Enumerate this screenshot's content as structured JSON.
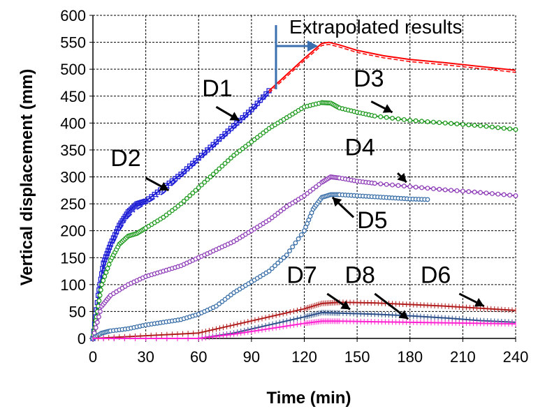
{
  "chart_data": {
    "type": "line",
    "title": "",
    "xlabel": "Time (min)",
    "ylabel": "Vertical displacement (mm)",
    "xlim": [
      0,
      240
    ],
    "ylim": [
      0,
      600
    ],
    "xticks": [
      0,
      30,
      60,
      90,
      120,
      150,
      180,
      210,
      240
    ],
    "yticks": [
      0,
      50,
      100,
      150,
      200,
      250,
      300,
      350,
      400,
      450,
      500,
      550,
      600
    ],
    "grid": true,
    "annotation": "Extrapolated results",
    "series": [
      {
        "name": "D1",
        "color": "#1f1fd6",
        "marker": "square-open",
        "x": [
          0,
          3,
          6,
          10,
          15,
          20,
          25,
          30,
          40,
          50,
          60,
          70,
          80,
          90,
          100
        ],
        "y": [
          0,
          80,
          140,
          175,
          210,
          235,
          250,
          255,
          280,
          305,
          335,
          365,
          395,
          425,
          460
        ]
      },
      {
        "name": "D2",
        "color": "#1f1fd6",
        "dash": true,
        "x": [
          0,
          3,
          6,
          10,
          15,
          20,
          25,
          30,
          40,
          50,
          60,
          70,
          80,
          90,
          100
        ],
        "y": [
          0,
          70,
          130,
          165,
          200,
          225,
          240,
          250,
          270,
          300,
          330,
          360,
          390,
          420,
          455
        ]
      },
      {
        "name": "Extrapolated",
        "color": "#ff0000",
        "x": [
          100,
          110,
          120,
          130,
          134,
          140,
          150,
          165,
          180,
          200,
          220,
          240
        ],
        "y": [
          460,
          490,
          520,
          548,
          550,
          545,
          535,
          525,
          518,
          512,
          505,
          498
        ]
      },
      {
        "name": "D3",
        "color": "#1f9a1f",
        "marker": "circle-open",
        "x": [
          0,
          2,
          5,
          10,
          15,
          20,
          25,
          30,
          40,
          50,
          60,
          70,
          80,
          90,
          100,
          110,
          120,
          130,
          135,
          140,
          150,
          160,
          180,
          200,
          220,
          240
        ],
        "y": [
          0,
          40,
          100,
          145,
          175,
          190,
          195,
          205,
          225,
          250,
          280,
          310,
          340,
          365,
          390,
          410,
          430,
          438,
          437,
          428,
          420,
          413,
          405,
          400,
          395,
          388
        ]
      },
      {
        "name": "D4",
        "color": "#8f3fb8",
        "marker": "circle-open",
        "x": [
          0,
          5,
          10,
          20,
          30,
          40,
          50,
          60,
          70,
          80,
          90,
          100,
          110,
          120,
          130,
          135,
          140,
          150,
          160,
          180,
          200,
          220,
          240
        ],
        "y": [
          0,
          60,
          80,
          100,
          115,
          125,
          135,
          150,
          165,
          180,
          200,
          220,
          245,
          265,
          290,
          300,
          298,
          292,
          288,
          282,
          276,
          271,
          265
        ]
      },
      {
        "name": "D5",
        "color": "#3a6fa8",
        "marker": "circle-open",
        "x": [
          0,
          5,
          10,
          20,
          30,
          40,
          50,
          60,
          70,
          80,
          90,
          100,
          110,
          120,
          125,
          130,
          135,
          140,
          150,
          160,
          170,
          180,
          190
        ],
        "y": [
          0,
          10,
          14,
          18,
          25,
          30,
          35,
          45,
          60,
          85,
          105,
          125,
          155,
          200,
          240,
          262,
          267,
          267,
          265,
          263,
          261,
          259,
          258
        ]
      },
      {
        "name": "D6",
        "color": "#b01c1c",
        "x": [
          0,
          30,
          60,
          80,
          100,
          120,
          130,
          140,
          160,
          180,
          200,
          220,
          240
        ],
        "y": [
          0,
          5,
          10,
          25,
          40,
          55,
          65,
          67,
          66,
          63,
          60,
          56,
          52
        ]
      },
      {
        "name": "D7",
        "color": "#2c4f8a",
        "x": [
          0,
          60,
          80,
          100,
          120,
          130,
          140,
          160,
          180,
          200,
          220,
          240
        ],
        "y": [
          0,
          0,
          10,
          25,
          40,
          48,
          47,
          45,
          42,
          38,
          33,
          30
        ]
      },
      {
        "name": "D8",
        "color": "#ff22d0",
        "x": [
          0,
          60,
          80,
          100,
          120,
          130,
          140,
          160,
          180,
          200,
          220,
          240
        ],
        "y": [
          0,
          0,
          8,
          18,
          28,
          32,
          32,
          31,
          30,
          29,
          28,
          27
        ]
      }
    ],
    "labels": [
      {
        "text": "D1",
        "x": 62,
        "y": 450,
        "ax": 70,
        "ay": 430,
        "bx": 83,
        "by": 405
      },
      {
        "text": "D2",
        "x": 10,
        "y": 320,
        "ax": 30,
        "ay": 298,
        "bx": 43,
        "by": 275
      },
      {
        "text": "D3",
        "x": 148,
        "y": 468,
        "ax": 158,
        "ay": 440,
        "bx": 170,
        "by": 420
      },
      {
        "text": "D4",
        "x": 143,
        "y": 340,
        "ax": 173,
        "ay": 307,
        "bx": 178,
        "by": 290
      },
      {
        "text": "D5",
        "x": 150,
        "y": 205,
        "ax": 148,
        "ay": 225,
        "bx": 136,
        "by": 262
      },
      {
        "text": "D7",
        "x": 110,
        "y": 103,
        "ax": 133,
        "ay": 83,
        "bx": 146,
        "by": 54
      },
      {
        "text": "D8",
        "x": 143,
        "y": 103,
        "ax": 160,
        "ay": 83,
        "bx": 179,
        "by": 36
      },
      {
        "text": "D6",
        "x": 186,
        "y": 103,
        "ax": 208,
        "ay": 83,
        "bx": 222,
        "by": 60
      }
    ]
  }
}
